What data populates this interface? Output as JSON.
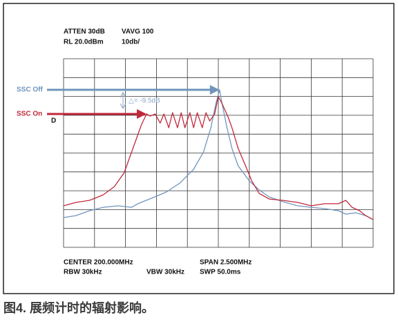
{
  "chart_data": {
    "type": "line",
    "caption": "图4. 展频计时的辐射影响。",
    "annotations": [
      "ATTEN 30dB",
      "RL 20.0dBm",
      "VAVG 100",
      "10db/",
      "D",
      "△= -9.5dB",
      "CENTER 200.000MHz",
      "RBW 30kHz",
      "VBW 30kHz",
      "SPAN 2.500MHz",
      "SWP 50.0ms"
    ],
    "xlim": [
      198.75,
      201.25
    ],
    "ylim": [
      -80,
      20
    ],
    "grid": true,
    "series": [
      {
        "name": "SSC Off",
        "color": "#6f95bd",
        "x": [
          198.75,
          198.85,
          198.96,
          199.07,
          199.19,
          199.3,
          199.35,
          199.46,
          199.58,
          199.69,
          199.8,
          199.88,
          199.94,
          199.98,
          200.01,
          200.03,
          200.07,
          200.11,
          200.16,
          200.25,
          200.33,
          200.41,
          200.52,
          200.64,
          200.75,
          200.86,
          200.97,
          201.03,
          201.11,
          201.19,
          201.25
        ],
        "values": [
          -64.2,
          -63.2,
          -60.6,
          -58.8,
          -58.0,
          -58.8,
          -56.9,
          -54.0,
          -50.7,
          -45.9,
          -38.6,
          -29.5,
          -16.6,
          -3.8,
          3.5,
          -3.8,
          -16.6,
          -27.6,
          -36.8,
          -44.8,
          -49.6,
          -53.3,
          -55.8,
          -58.0,
          -58.8,
          -59.5,
          -60.6,
          -62.4,
          -61.7,
          -63.2,
          -65.3
        ]
      },
      {
        "name": "SSC On",
        "color": "#c0283a",
        "x": [
          198.75,
          198.85,
          198.96,
          199.07,
          199.16,
          199.24,
          199.32,
          199.38,
          199.42,
          199.45,
          199.49,
          199.53,
          199.56,
          199.6,
          199.63,
          199.67,
          199.7,
          199.73,
          199.77,
          199.8,
          199.83,
          199.87,
          199.9,
          199.93,
          199.97,
          200.0,
          200.03,
          200.08,
          200.11,
          200.16,
          200.22,
          200.27,
          200.33,
          200.41,
          200.52,
          200.64,
          200.75,
          200.86,
          200.97,
          201.03,
          201.08,
          201.14,
          201.19,
          201.25
        ],
        "values": [
          -58.0,
          -56.2,
          -55.1,
          -52.2,
          -47.8,
          -40.4,
          -25.8,
          -14.8,
          -9.3,
          -10.4,
          -9.3,
          -14.1,
          -9.3,
          -16.6,
          -8.6,
          -16.6,
          -8.6,
          -16.6,
          -8.6,
          -16.6,
          -8.6,
          -16.6,
          -8.6,
          -13.0,
          -9.3,
          -0.1,
          -3.8,
          -11.1,
          -16.6,
          -27.6,
          -36.8,
          -44.8,
          -51.4,
          -54.4,
          -55.1,
          -56.2,
          -58.0,
          -56.9,
          -56.9,
          -55.1,
          -58.8,
          -60.6,
          -63.2,
          -65.3
        ]
      }
    ]
  }
}
